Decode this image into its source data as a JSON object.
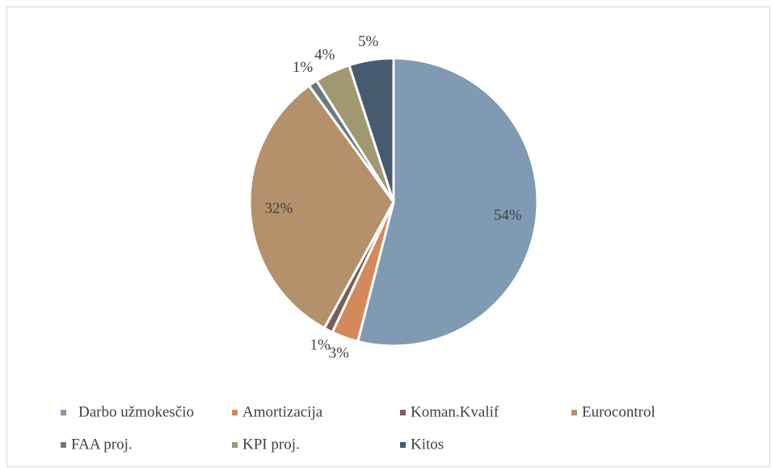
{
  "chart_data": {
    "type": "pie",
    "categories": [
      "Darbo užmokesčio",
      "Amortizacija",
      "Koman.Kvalif",
      "Eurocontrol",
      "FAA proj.",
      "KPI proj.",
      "Kitos"
    ],
    "values": [
      54,
      3,
      1,
      32,
      1,
      4,
      5
    ],
    "value_labels": [
      "54%",
      "3%",
      "1%",
      "32%",
      "1%",
      "4%",
      "5%"
    ],
    "colors": [
      "#7f9ab2",
      "#d4895a",
      "#7a5f58",
      "#b4916a",
      "#687c80",
      "#a09870",
      "#465a70"
    ],
    "legend": "bottom"
  }
}
